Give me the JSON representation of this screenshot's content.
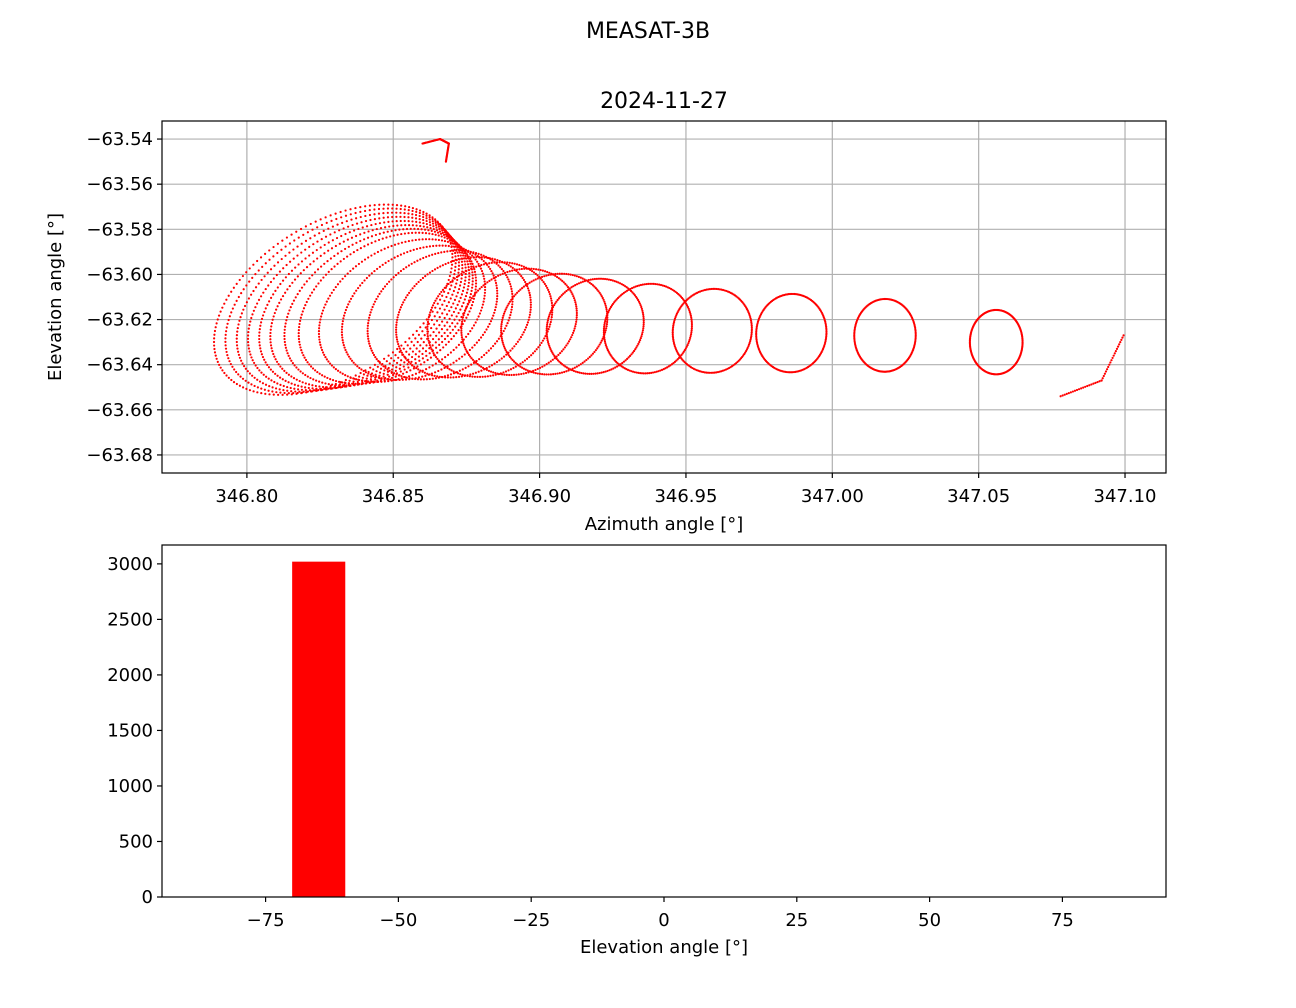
{
  "figure": {
    "suptitle": "MEASAT-3B"
  },
  "chart_data": [
    {
      "type": "scatter",
      "title": "2024-11-27",
      "xlabel": "Azimuth angle [°]",
      "ylabel": "Elevation angle [°]",
      "xlim": [
        346.771,
        347.114
      ],
      "ylim": [
        -63.688,
        -63.532
      ],
      "xticks": [
        346.8,
        346.85,
        346.9,
        346.95,
        347.0,
        347.05,
        347.1
      ],
      "xtick_labels": [
        "346.80",
        "346.85",
        "346.90",
        "346.95",
        "347.00",
        "347.05",
        "347.10"
      ],
      "yticks": [
        -63.68,
        -63.66,
        -63.64,
        -63.62,
        -63.6,
        -63.58,
        -63.56,
        -63.54
      ],
      "ytick_labels": [
        "−63.68",
        "−63.66",
        "−63.64",
        "−63.62",
        "−63.60",
        "−63.58",
        "−63.56",
        "−63.54"
      ],
      "grid": true,
      "marker_color": "#ff0000",
      "series": [
        {
          "trajectory_loops": [
            {
              "cx": 346.8295,
              "cy": -63.6112,
              "rx": 0.0365,
              "ry": 0.068,
              "tilt": 0.55
            },
            {
              "cx": 346.832,
              "cy": -63.6117,
              "rx": 0.0355,
              "ry": 0.066,
              "tilt": 0.53
            },
            {
              "cx": 346.8345,
              "cy": -63.6123,
              "rx": 0.0345,
              "ry": 0.064,
              "tilt": 0.51
            },
            {
              "cx": 346.837,
              "cy": -63.6129,
              "rx": 0.0335,
              "ry": 0.062,
              "tilt": 0.49
            },
            {
              "cx": 346.8395,
              "cy": -63.6135,
              "rx": 0.0325,
              "ry": 0.06,
              "tilt": 0.47
            },
            {
              "cx": 346.842,
              "cy": -63.6141,
              "rx": 0.0315,
              "ry": 0.058,
              "tilt": 0.45
            },
            {
              "cx": 346.845,
              "cy": -63.6145,
              "rx": 0.03,
              "ry": 0.056,
              "tilt": 0.43
            },
            {
              "cx": 346.848,
              "cy": -63.615,
              "rx": 0.0285,
              "ry": 0.054,
              "tilt": 0.4
            },
            {
              "cx": 346.853,
              "cy": -63.616,
              "rx": 0.027,
              "ry": 0.051,
              "tilt": 0.36
            },
            {
              "cx": 346.859,
              "cy": -63.617,
              "rx": 0.0255,
              "ry": 0.048,
              "tilt": 0.32
            },
            {
              "cx": 346.866,
              "cy": -63.618,
              "rx": 0.024,
              "ry": 0.046,
              "tilt": 0.28
            },
            {
              "cx": 346.874,
              "cy": -63.619,
              "rx": 0.0225,
              "ry": 0.043,
              "tilt": 0.24
            },
            {
              "cx": 346.883,
              "cy": -63.62,
              "rx": 0.021,
              "ry": 0.041,
              "tilt": 0.2
            },
            {
              "cx": 346.893,
              "cy": -63.621,
              "rx": 0.0195,
              "ry": 0.038,
              "tilt": 0.17
            },
            {
              "cx": 346.905,
              "cy": -63.622,
              "rx": 0.018,
              "ry": 0.036,
              "tilt": 0.14
            },
            {
              "cx": 346.919,
              "cy": -63.623,
              "rx": 0.0165,
              "ry": 0.034,
              "tilt": 0.11
            },
            {
              "cx": 346.937,
              "cy": -63.624,
              "rx": 0.015,
              "ry": 0.032,
              "tilt": 0.08
            },
            {
              "cx": 346.959,
              "cy": -63.625,
              "rx": 0.0135,
              "ry": 0.03,
              "tilt": 0.05
            },
            {
              "cx": 346.986,
              "cy": -63.626,
              "rx": 0.012,
              "ry": 0.028,
              "tilt": 0.03
            },
            {
              "cx": 347.018,
              "cy": -63.627,
              "rx": 0.0105,
              "ry": 0.026,
              "tilt": 0.01
            },
            {
              "cx": 347.056,
              "cy": -63.63,
              "rx": 0.009,
              "ry": 0.023,
              "tilt": 0.0
            }
          ],
          "tail": [
            [
              347.078,
              -63.654
            ],
            [
              347.092,
              -63.647
            ],
            [
              347.0995,
              -63.627
            ]
          ],
          "head": [
            [
              346.86,
              -63.542
            ],
            [
              346.866,
              -63.54
            ],
            [
              346.869,
              -63.542
            ],
            [
              346.868,
              -63.55
            ]
          ]
        }
      ]
    },
    {
      "type": "bar",
      "title": "",
      "xlabel": "Elevation angle [°]",
      "ylabel": "",
      "xlim": [
        -94.5,
        94.5
      ],
      "ylim": [
        0,
        3170
      ],
      "xticks": [
        -75,
        -50,
        -25,
        0,
        25,
        50,
        75
      ],
      "xtick_labels": [
        "−75",
        "−50",
        "−25",
        "0",
        "25",
        "50",
        "75"
      ],
      "yticks": [
        0,
        500,
        1000,
        1500,
        2000,
        2500,
        3000
      ],
      "ytick_labels": [
        "0",
        "500",
        "1000",
        "1500",
        "2000",
        "2500",
        "3000"
      ],
      "grid": false,
      "bar_color": "#ff0000",
      "bins": [
        {
          "x0": -70,
          "x1": -60,
          "count": 3020
        }
      ]
    }
  ]
}
